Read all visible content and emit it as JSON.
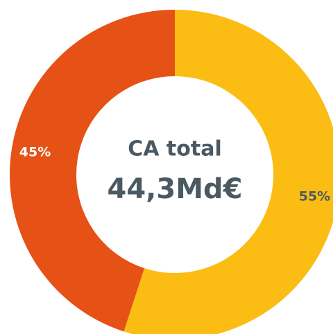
{
  "chart_data": {
    "type": "donut",
    "values": [
      55,
      45
    ],
    "value_labels": [
      "55%",
      "45%"
    ],
    "colors": [
      "#fbbd14",
      "#e65116"
    ],
    "label_colors": [
      "#4a5962",
      "#ffffff"
    ],
    "center_title": "CA total",
    "center_value": "44,3Md€"
  }
}
